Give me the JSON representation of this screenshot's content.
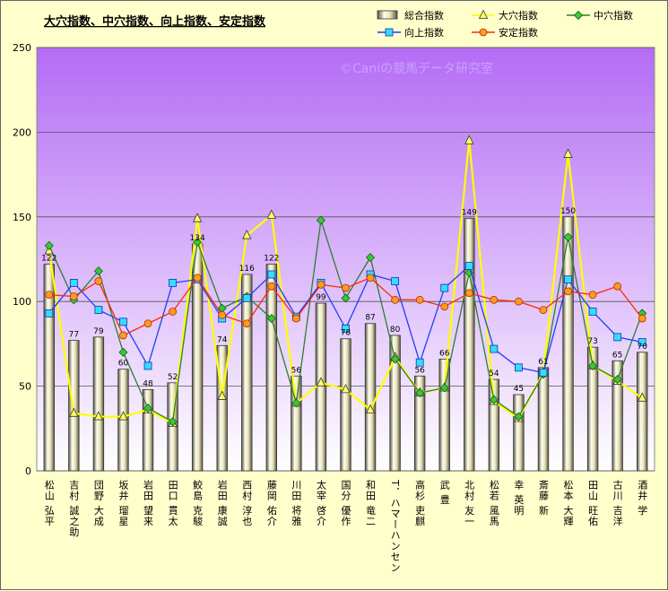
{
  "chart_data": {
    "type": "bar",
    "title": "大穴指数、中穴指数、向上指数、安定指数",
    "watermark": "©Caniの競馬データ研究室",
    "ylim": [
      0,
      250
    ],
    "yticks": [
      0,
      50,
      100,
      150,
      200,
      250
    ],
    "grid": true,
    "legend_position": "top-right",
    "categories": [
      "松山 弘平",
      "吉村 誠之助",
      "団野 大成",
      "坂井 瑠星",
      "岩田 望来",
      "田口 貫太",
      "鮫島 克駿",
      "岩田 康誠",
      "西村 淳也",
      "藤岡 佑介",
      "川田 将雅",
      "太宰 啓介",
      "国分 優作",
      "和田 竜二",
      "T．ハマーハンセン",
      "高杉 吏麒",
      "武 豊",
      "北村 友一",
      "松若 風馬",
      "幸 英明",
      "斎藤 新",
      "松本 大輝",
      "田山 旺佑",
      "古川 吉洋",
      "酒井 学"
    ],
    "series": [
      {
        "name": "総合指数",
        "type": "bar",
        "color": "#d8d0a8",
        "values": [
          122,
          77,
          79,
          60,
          48,
          52,
          134,
          74,
          116,
          122,
          56,
          99,
          78,
          87,
          80,
          56,
          66,
          149,
          54,
          45,
          61,
          150,
          73,
          65,
          70
        ],
        "labels": [
          "122",
          "77",
          "79",
          "60",
          "48",
          "52",
          "134",
          "74",
          "116",
          "122",
          "56",
          "99",
          "78",
          "87",
          "80",
          "56",
          "66",
          "149",
          "54",
          "45",
          "61",
          "150",
          "73",
          "65",
          "70"
        ]
      },
      {
        "name": "大穴指数",
        "type": "line",
        "color": "#ffff00",
        "marker": "triangle",
        "values": [
          130,
          34,
          32,
          32,
          36,
          28,
          149,
          44,
          139,
          151,
          40,
          52,
          48,
          36,
          67,
          46,
          49,
          195,
          41,
          31,
          58,
          187,
          62,
          53,
          43
        ]
      },
      {
        "name": "中穴指数",
        "type": "line",
        "color": "#2e7d32",
        "marker": "diamond",
        "values": [
          133,
          101,
          118,
          70,
          37,
          29,
          135,
          96,
          103,
          90,
          40,
          148,
          102,
          126,
          66,
          46,
          49,
          117,
          42,
          32,
          57,
          138,
          62,
          54,
          93
        ]
      },
      {
        "name": "向上指数",
        "type": "line",
        "color": "#1e3cff",
        "marker": "square",
        "values": [
          93,
          111,
          95,
          88,
          62,
          111,
          113,
          90,
          102,
          116,
          91,
          111,
          84,
          116,
          112,
          64,
          108,
          121,
          72,
          61,
          58,
          113,
          94,
          79,
          76
        ]
      },
      {
        "name": "安定指数",
        "type": "line",
        "color": "#ff2a00",
        "marker": "circle",
        "values": [
          104,
          103,
          112,
          80,
          87,
          94,
          114,
          92,
          87,
          109,
          90,
          110,
          108,
          114,
          101,
          101,
          97,
          105,
          101,
          100,
          95,
          106,
          104,
          109,
          90
        ]
      }
    ]
  }
}
